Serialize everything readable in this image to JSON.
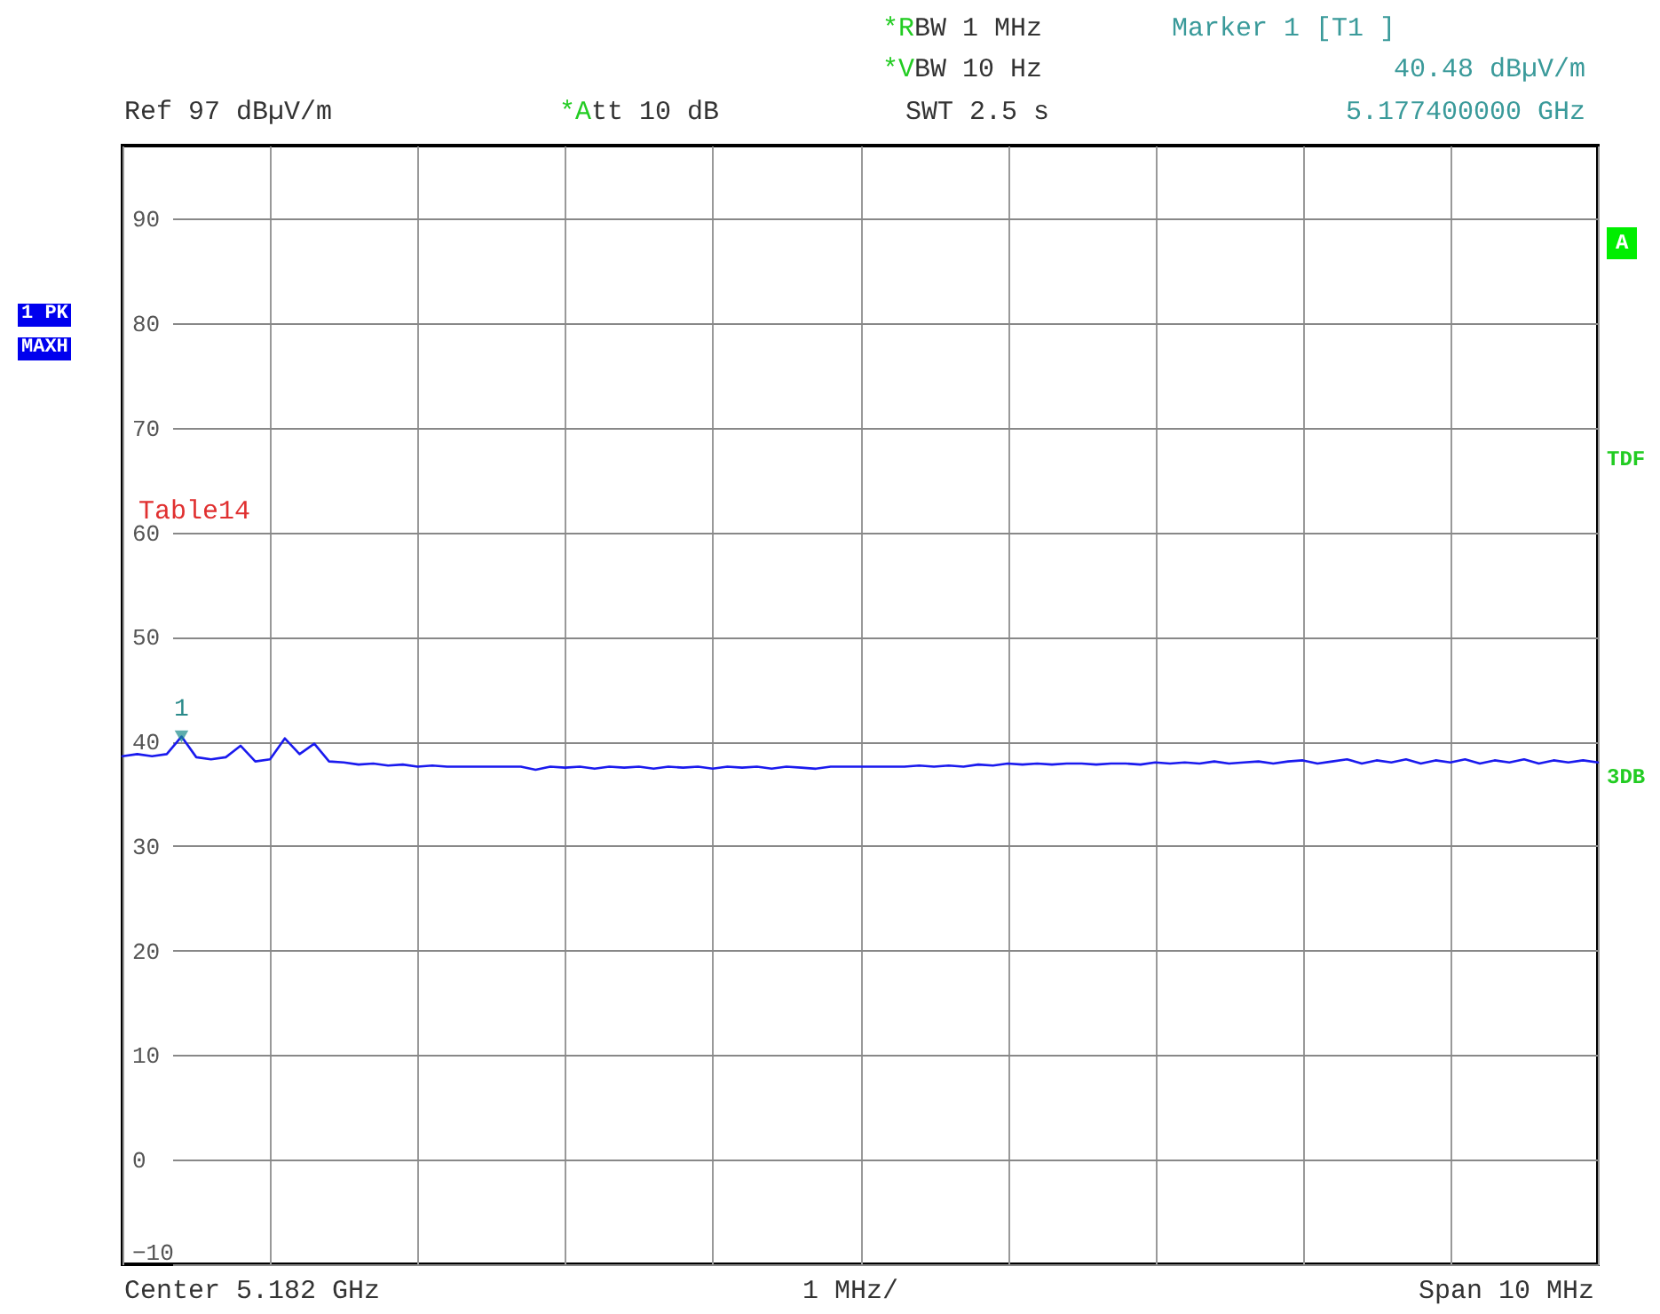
{
  "chart_data": {
    "type": "line",
    "categories": [
      null,
      null,
      null,
      null,
      null,
      null,
      null,
      null,
      null,
      null,
      null,
      null,
      null,
      null,
      null,
      null,
      null,
      null,
      null,
      null,
      null,
      null,
      null,
      null,
      null,
      null,
      null,
      null,
      null,
      null,
      null,
      null,
      null,
      null,
      null,
      null,
      null,
      null,
      null,
      null,
      null,
      null,
      null,
      null,
      null,
      null,
      null,
      null,
      null,
      null,
      null,
      null,
      null,
      null,
      null,
      null,
      null,
      null,
      null,
      null,
      null,
      null,
      null,
      null,
      null,
      null,
      null,
      null,
      null,
      null,
      null,
      null,
      null,
      null,
      null,
      null,
      null,
      null,
      null,
      null,
      null,
      null,
      null,
      null,
      null,
      null,
      null,
      null,
      null,
      null,
      null,
      null,
      null,
      null,
      null,
      null,
      null,
      null,
      null,
      null,
      null
    ],
    "series": [
      {
        "color": "#1a1aee",
        "values": [
          38.6,
          38.8,
          38.6,
          38.8,
          40.48,
          38.5,
          38.3,
          38.5,
          39.6,
          38.1,
          38.3,
          40.3,
          38.8,
          39.8,
          38.1,
          38.0,
          37.8,
          37.9,
          37.7,
          37.8,
          37.6,
          37.7,
          37.6,
          37.6,
          37.6,
          37.6,
          37.6,
          37.6,
          37.3,
          37.6,
          37.5,
          37.6,
          37.4,
          37.6,
          37.5,
          37.6,
          37.4,
          37.6,
          37.5,
          37.6,
          37.4,
          37.6,
          37.5,
          37.6,
          37.4,
          37.6,
          37.5,
          37.4,
          37.6,
          37.6,
          37.6,
          37.6,
          37.6,
          37.6,
          37.7,
          37.6,
          37.7,
          37.6,
          37.8,
          37.7,
          37.9,
          37.8,
          37.9,
          37.8,
          37.9,
          37.9,
          37.8,
          37.9,
          37.9,
          37.8,
          38.0,
          37.9,
          38.0,
          37.9,
          38.1,
          37.9,
          38.0,
          38.1,
          37.9,
          38.1,
          38.2,
          37.9,
          38.1,
          38.3,
          37.9,
          38.2,
          38.0,
          38.3,
          37.9,
          38.2,
          38.0,
          38.3,
          37.9,
          38.2,
          38.0,
          38.3,
          37.9,
          38.2,
          38.0,
          38.2,
          38.0
        ]
      }
    ],
    "ylim": [
      -10,
      97
    ],
    "yticks": [
      90,
      80,
      70,
      60,
      50,
      40,
      30,
      20,
      10,
      0,
      -10
    ],
    "grid": true,
    "line_style": "solid",
    "marker": "none",
    "annotations": [
      "*RBW 1 MHz",
      "*VBW 10 Hz",
      "Ref 97 dBµV/m",
      "*Att 10 dB",
      "SWT 2.5 s",
      "Marker 1 [T1 ]",
      "40.48 dBµV/m",
      "5.177400000 GHz",
      "1 PK",
      "MAXH",
      "A",
      "TDF",
      "3DB",
      "Table14",
      "Center 5.182 GHz",
      "1 MHz/",
      "Span 10 MHz",
      {
        "text": "1",
        "y": 40.48
      }
    ]
  }
}
